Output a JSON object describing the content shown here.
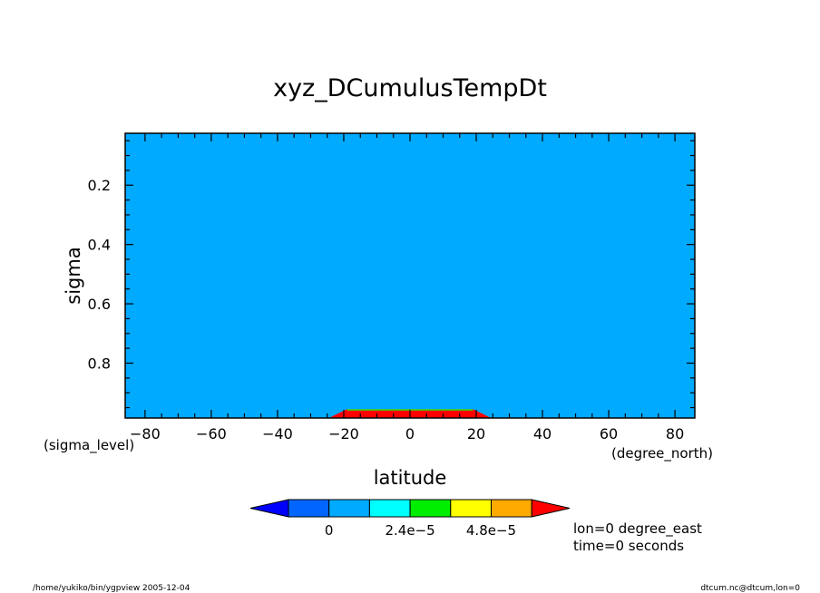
{
  "chart_data": {
    "type": "heatmap",
    "title": "xyz_DCumulusTempDt",
    "xlabel": "latitude",
    "xunits": "(degree_north)",
    "ylabel": "sigma",
    "yunits": "(sigma_level)",
    "xlim": [
      -86,
      86
    ],
    "ylim": [
      0.025,
      0.985
    ],
    "y_inverted": true,
    "x_ticks": [
      -80,
      -60,
      -40,
      -20,
      0,
      20,
      40,
      60,
      80
    ],
    "y_ticks": [
      0.2,
      0.4,
      0.6,
      0.8
    ],
    "y_tick_labels": [
      "0.2",
      "0.4",
      "0.6",
      "0.8"
    ],
    "background_level_color": "#00aaff",
    "regions": [
      {
        "color": "#ff0000",
        "outline": [
          [
            -24.5,
            0.985
          ],
          [
            -19,
            0.955
          ],
          [
            19,
            0.955
          ],
          [
            24.5,
            0.985
          ]
        ]
      },
      {
        "color": "#22ee22",
        "outline": [
          [
            -19,
            0.955
          ],
          [
            19,
            0.955
          ],
          [
            19,
            0.96
          ],
          [
            -19,
            0.96
          ]
        ]
      }
    ],
    "colorbar": {
      "colors": [
        "#0000ff",
        "#0066ff",
        "#00aaff",
        "#00ffff",
        "#00ee00",
        "#ffff00",
        "#ffaa00",
        "#ff0000"
      ],
      "labels": [
        "0",
        "2.4e-5",
        "4.8e-5"
      ]
    },
    "annotations": [
      "lon=0 degree_east",
      "time=0 seconds"
    ]
  },
  "footer": {
    "left": "/home/yukiko/bin/ygpview  2005-12-04",
    "right": "dtcum.nc@dtcum,lon=0"
  }
}
